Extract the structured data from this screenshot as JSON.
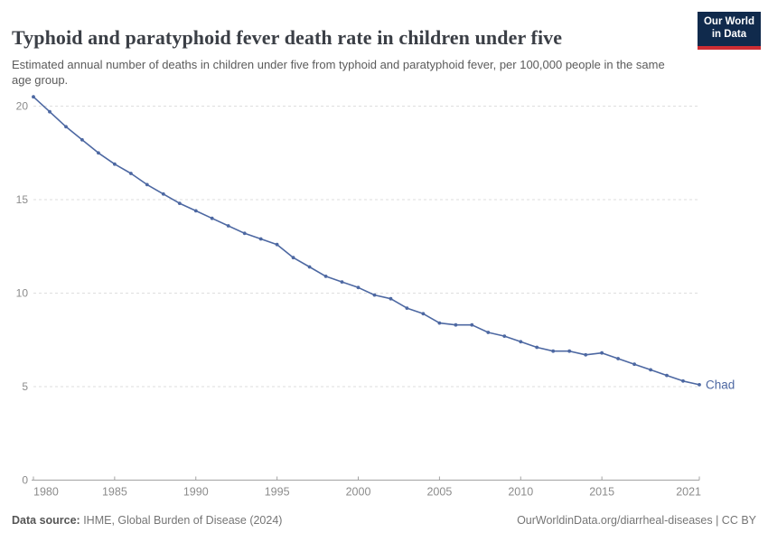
{
  "logo": {
    "line1": "Our World",
    "line2": "in Data"
  },
  "chart_data": {
    "type": "line",
    "title": "Typhoid and paratyphoid fever death rate in children under five",
    "subtitle": "Estimated annual number of deaths in children under five from typhoid and paratyphoid fever, per 100,000 people in the same age group.",
    "xlabel": "",
    "ylabel": "",
    "xlim": [
      1980,
      2021
    ],
    "ylim": [
      0,
      20.5
    ],
    "x_ticks": [
      1980,
      1985,
      1990,
      1995,
      2000,
      2005,
      2010,
      2015,
      2021
    ],
    "y_ticks": [
      0,
      5,
      10,
      15,
      20
    ],
    "grid": "horizontal-dashed",
    "legend_position": "end-of-line-label",
    "colors": {
      "line": "#4D68A2",
      "grid": "#dedede",
      "axis": "#a3a3a3",
      "tick_label": "#8c8c8c"
    },
    "series": [
      {
        "name": "Chad",
        "color": "#4D68A2",
        "x": [
          1980,
          1981,
          1982,
          1983,
          1984,
          1985,
          1986,
          1987,
          1988,
          1989,
          1990,
          1991,
          1992,
          1993,
          1994,
          1995,
          1996,
          1997,
          1998,
          1999,
          2000,
          2001,
          2002,
          2003,
          2004,
          2005,
          2006,
          2007,
          2008,
          2009,
          2010,
          2011,
          2012,
          2013,
          2014,
          2015,
          2016,
          2017,
          2018,
          2019,
          2020,
          2021
        ],
        "values": [
          20.5,
          19.7,
          18.9,
          18.2,
          17.5,
          16.9,
          16.4,
          15.8,
          15.3,
          14.8,
          14.4,
          14.0,
          13.6,
          13.2,
          12.9,
          12.6,
          11.9,
          11.4,
          10.9,
          10.6,
          10.3,
          9.9,
          9.7,
          9.2,
          8.9,
          8.4,
          8.3,
          8.3,
          7.9,
          7.7,
          7.4,
          7.1,
          6.9,
          6.9,
          6.7,
          6.8,
          6.5,
          6.2,
          5.9,
          5.6,
          5.3,
          5.1
        ]
      }
    ]
  },
  "footer": {
    "datasource_label": "Data source:",
    "datasource_text": " IHME, Global Burden of Disease (2024)",
    "attribution": "OurWorldinData.org/diarrheal-diseases | CC BY"
  }
}
